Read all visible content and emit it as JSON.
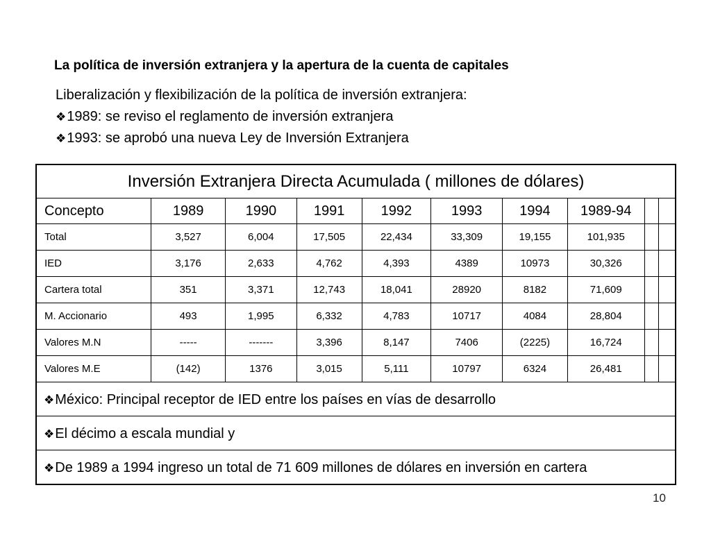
{
  "title": "La política de inversión extranjera y la apertura de la cuenta de capitales",
  "intro": {
    "lead": "Liberalización y flexibilización de la política de inversión extranjera:",
    "bullet_glyph": "❖",
    "bullets": [
      "1989: se reviso el reglamento de inversión extranjera",
      "1993: se aprobó una nueva Ley de Inversión Extranjera"
    ]
  },
  "table": {
    "caption": "Inversión Extranjera Directa Acumulada ( millones de dólares)",
    "headers": [
      "Concepto",
      "1989",
      "1990",
      "1991",
      "1992",
      "1993",
      "1994",
      "1989-94"
    ],
    "rows": [
      [
        "Total",
        "3,527",
        "6,004",
        "17,505",
        "22,434",
        "33,309",
        "19,155",
        "101,935"
      ],
      [
        "IED",
        "3,176",
        "2,633",
        "4,762",
        "4,393",
        "4389",
        "10973",
        "30,326"
      ],
      [
        "Cartera total",
        "351",
        "3,371",
        "12,743",
        "18,041",
        "28920",
        "8182",
        "71,609"
      ],
      [
        "M. Accionario",
        "493",
        "1,995",
        "6,332",
        "4,783",
        "10717",
        "4084",
        "28,804"
      ],
      [
        "Valores M.N",
        "-----",
        "-------",
        "3,396",
        "8,147",
        "7406",
        "(2225)",
        "16,724"
      ],
      [
        "Valores M.E",
        "(142)",
        "1376",
        "3,015",
        "5,111",
        "10797",
        "6324",
        "26,481"
      ]
    ],
    "notes": [
      "México: Principal receptor de IED entre los países en vías de desarrollo",
      "El décimo a escala mundial y",
      "De 1989 a 1994 ingreso un total de 71 609 millones de dólares en inversión en cartera"
    ]
  },
  "page_number": "10"
}
